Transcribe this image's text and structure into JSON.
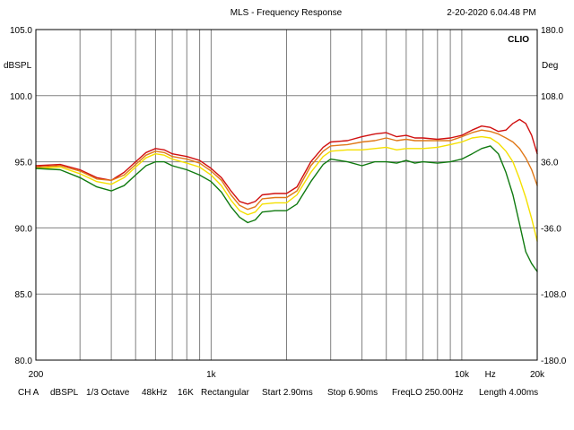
{
  "header": {
    "title": "MLS - Frequency Response",
    "timestamp": "2-20-2020 6.04.48 PM",
    "brand": "CLIO"
  },
  "footer": {
    "channel": "CH A",
    "unit": "dBSPL",
    "smoothing": "1/3 Octave",
    "sample_rate": "48kHz",
    "size": "16K",
    "window": "Rectangular",
    "start": "Start 2.90ms",
    "stop": "Stop 6.90ms",
    "freq_lo": "FreqLO 250.00Hz",
    "length": "Length 4.00ms"
  },
  "chart_data": {
    "type": "line",
    "title": "MLS - Frequency Response",
    "xlabel": "Hz",
    "ylabel": "dBSPL",
    "y2label": "Deg",
    "xscale": "log",
    "xlim": [
      200,
      20000
    ],
    "ylim": [
      80,
      105
    ],
    "y2lim": [
      -180,
      180
    ],
    "grid": true,
    "y_ticks": [
      105,
      100,
      95,
      90,
      85,
      80
    ],
    "y_tick_labels": [
      "105.0",
      "100.0",
      "95.0",
      "90.0",
      "85.0",
      "80.0"
    ],
    "y2_ticks": [
      180,
      108,
      36,
      -36,
      -108,
      -180
    ],
    "y2_tick_labels": [
      "180.0",
      "108.0",
      "36.0",
      "-36.0",
      "-108.0",
      "-180.0"
    ],
    "x_ticks": [
      200,
      1000,
      10000,
      20000
    ],
    "x_tick_labels": [
      "200",
      "1k",
      "10k",
      "20k"
    ],
    "x_unit_position": 13000,
    "x_grid": [
      200,
      300,
      400,
      500,
      600,
      700,
      800,
      900,
      1000,
      2000,
      3000,
      4000,
      5000,
      6000,
      7000,
      8000,
      9000,
      10000,
      20000
    ],
    "series": [
      {
        "name": "red",
        "color": "#d01010",
        "x": [
          200,
          250,
          300,
          350,
          400,
          450,
          500,
          550,
          600,
          650,
          700,
          800,
          900,
          1000,
          1100,
          1200,
          1300,
          1400,
          1500,
          1600,
          1800,
          2000,
          2200,
          2500,
          2800,
          3000,
          3500,
          4000,
          4500,
          5000,
          5500,
          6000,
          6500,
          7000,
          8000,
          9000,
          10000,
          11000,
          12000,
          13000,
          14000,
          15000,
          16000,
          17000,
          18000,
          19000,
          20000
        ],
        "values": [
          94.7,
          94.8,
          94.4,
          93.8,
          93.6,
          94.2,
          95.0,
          95.7,
          96.0,
          95.9,
          95.6,
          95.4,
          95.1,
          94.5,
          93.8,
          92.8,
          92.0,
          91.8,
          92.0,
          92.5,
          92.6,
          92.6,
          93.1,
          95.0,
          96.1,
          96.5,
          96.6,
          96.9,
          97.1,
          97.2,
          96.9,
          97.0,
          96.8,
          96.8,
          96.7,
          96.8,
          97.0,
          97.4,
          97.7,
          97.6,
          97.3,
          97.4,
          97.9,
          98.2,
          97.9,
          97.0,
          95.6
        ]
      },
      {
        "name": "orange",
        "color": "#e07818",
        "x": [
          200,
          250,
          300,
          350,
          400,
          450,
          500,
          550,
          600,
          650,
          700,
          800,
          900,
          1000,
          1100,
          1200,
          1300,
          1400,
          1500,
          1600,
          1800,
          2000,
          2200,
          2500,
          2800,
          3000,
          3500,
          4000,
          4500,
          5000,
          5500,
          6000,
          6500,
          7000,
          8000,
          9000,
          10000,
          11000,
          12000,
          13000,
          14000,
          15000,
          16000,
          17000,
          18000,
          19000,
          20000
        ],
        "values": [
          94.6,
          94.7,
          94.3,
          93.7,
          93.6,
          94.0,
          94.8,
          95.5,
          95.8,
          95.7,
          95.4,
          95.2,
          94.9,
          94.3,
          93.6,
          92.5,
          91.7,
          91.4,
          91.6,
          92.2,
          92.3,
          92.3,
          92.8,
          94.7,
          95.8,
          96.2,
          96.3,
          96.5,
          96.6,
          96.8,
          96.6,
          96.7,
          96.6,
          96.6,
          96.6,
          96.6,
          96.9,
          97.2,
          97.4,
          97.3,
          97.1,
          96.8,
          96.5,
          96.0,
          95.3,
          94.4,
          93.2
        ]
      },
      {
        "name": "yellow",
        "color": "#f5e000",
        "x": [
          200,
          250,
          300,
          350,
          400,
          450,
          500,
          550,
          600,
          650,
          700,
          800,
          900,
          1000,
          1100,
          1200,
          1300,
          1400,
          1500,
          1600,
          1800,
          2000,
          2200,
          2500,
          2800,
          3000,
          3500,
          4000,
          4500,
          5000,
          5500,
          6000,
          6500,
          7000,
          8000,
          9000,
          10000,
          11000,
          12000,
          13000,
          14000,
          15000,
          16000,
          17000,
          18000,
          19000,
          20000
        ],
        "values": [
          94.5,
          94.6,
          94.1,
          93.5,
          93.3,
          93.8,
          94.6,
          95.3,
          95.6,
          95.5,
          95.2,
          94.9,
          94.6,
          94.0,
          93.2,
          92.1,
          91.3,
          91.0,
          91.2,
          91.8,
          91.9,
          91.9,
          92.5,
          94.2,
          95.4,
          95.8,
          95.9,
          95.9,
          96.0,
          96.1,
          95.9,
          96.0,
          96.0,
          96.0,
          96.1,
          96.3,
          96.5,
          96.8,
          96.9,
          96.8,
          96.4,
          95.8,
          95.0,
          93.7,
          92.3,
          90.7,
          89.0
        ]
      },
      {
        "name": "green",
        "color": "#107a10",
        "x": [
          200,
          250,
          300,
          350,
          400,
          450,
          500,
          550,
          600,
          650,
          700,
          800,
          900,
          1000,
          1100,
          1200,
          1300,
          1400,
          1500,
          1600,
          1800,
          2000,
          2200,
          2500,
          2800,
          3000,
          3500,
          4000,
          4500,
          5000,
          5500,
          6000,
          6500,
          7000,
          8000,
          9000,
          10000,
          11000,
          12000,
          13000,
          14000,
          15000,
          16000,
          17000,
          18000,
          19000,
          20000
        ],
        "values": [
          94.5,
          94.4,
          93.8,
          93.1,
          92.8,
          93.2,
          94.0,
          94.7,
          95.0,
          95.0,
          94.7,
          94.4,
          94.0,
          93.5,
          92.7,
          91.6,
          90.8,
          90.4,
          90.6,
          91.2,
          91.3,
          91.3,
          91.8,
          93.5,
          94.8,
          95.2,
          95.0,
          94.7,
          95.0,
          95.0,
          94.9,
          95.1,
          94.9,
          95.0,
          94.9,
          95.0,
          95.2,
          95.6,
          96.0,
          96.2,
          95.6,
          94.2,
          92.5,
          90.3,
          88.2,
          87.3,
          86.7
        ]
      }
    ]
  }
}
